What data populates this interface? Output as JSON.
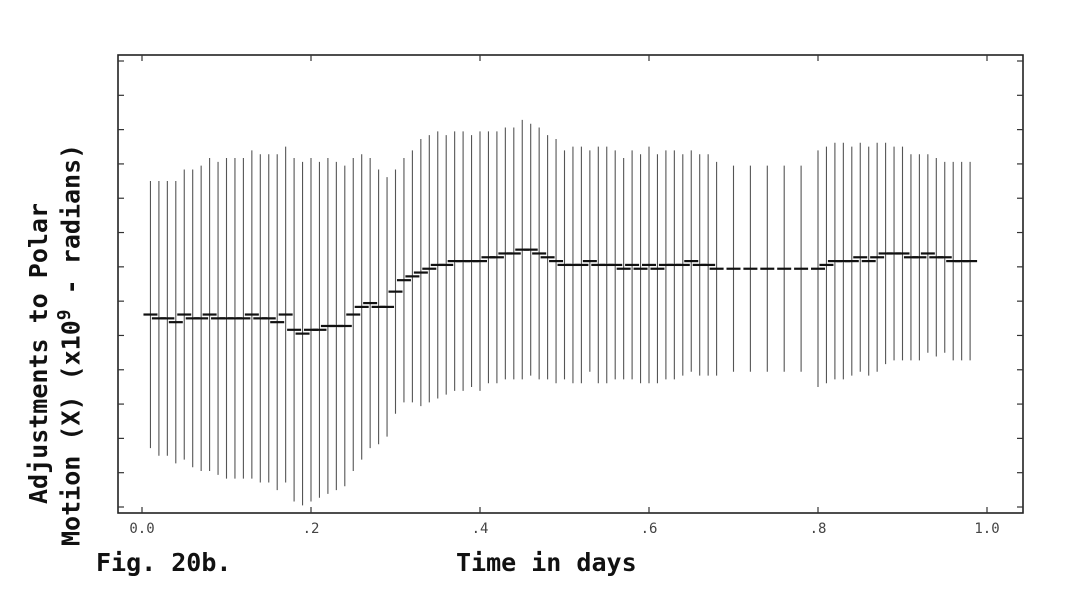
{
  "figure": {
    "caption": "Fig. 20b.",
    "y_label_line1": "Adjustments to Polar",
    "y_label_line2": "Motion (X) (x10",
    "y_label_exponent": "9",
    "y_label_suffix": "- radians)"
  },
  "chart_data": {
    "type": "scatter",
    "title": "",
    "xlabel": "Time in days",
    "ylabel": "Adjustments to Polar Motion (X) (x10^9 - radians)",
    "xlim": [
      0.0,
      1.0
    ],
    "ylim": [
      -0.6,
      0.6
    ],
    "x_ticks": [
      0.0,
      0.2,
      0.4,
      0.6,
      0.8,
      1.0
    ],
    "x_tick_labels": [
      "0.0",
      ".2",
      ".4",
      ".6",
      ".8",
      "1.0"
    ],
    "grid": false,
    "legend": "none",
    "series": [
      {
        "error_bars": true,
        "x": [
          0.01,
          0.02,
          0.03,
          0.04,
          0.05,
          0.06,
          0.07,
          0.08,
          0.09,
          0.1,
          0.11,
          0.12,
          0.13,
          0.14,
          0.15,
          0.16,
          0.17,
          0.18,
          0.19,
          0.2,
          0.21,
          0.22,
          0.23,
          0.24,
          0.25,
          0.26,
          0.27,
          0.28,
          0.29,
          0.3,
          0.31,
          0.32,
          0.33,
          0.34,
          0.35,
          0.36,
          0.37,
          0.38,
          0.39,
          0.4,
          0.41,
          0.42,
          0.43,
          0.44,
          0.45,
          0.46,
          0.47,
          0.48,
          0.49,
          0.5,
          0.51,
          0.52,
          0.53,
          0.54,
          0.55,
          0.56,
          0.57,
          0.58,
          0.59,
          0.6,
          0.61,
          0.62,
          0.63,
          0.64,
          0.65,
          0.66,
          0.67,
          0.68,
          0.7,
          0.72,
          0.74,
          0.76,
          0.78,
          0.8,
          0.81,
          0.82,
          0.83,
          0.84,
          0.85,
          0.86,
          0.87,
          0.88,
          0.89,
          0.9,
          0.91,
          0.92,
          0.93,
          0.94,
          0.95,
          0.96,
          0.97,
          0.98
        ],
        "y": [
          -0.08,
          -0.09,
          -0.09,
          -0.1,
          -0.08,
          -0.09,
          -0.09,
          -0.08,
          -0.09,
          -0.09,
          -0.09,
          -0.09,
          -0.08,
          -0.09,
          -0.09,
          -0.1,
          -0.08,
          -0.12,
          -0.13,
          -0.12,
          -0.12,
          -0.11,
          -0.11,
          -0.11,
          -0.08,
          -0.06,
          -0.05,
          -0.06,
          -0.06,
          -0.02,
          0.01,
          0.02,
          0.03,
          0.04,
          0.05,
          0.05,
          0.06,
          0.06,
          0.06,
          0.06,
          0.07,
          0.07,
          0.08,
          0.08,
          0.09,
          0.09,
          0.08,
          0.07,
          0.06,
          0.05,
          0.05,
          0.05,
          0.06,
          0.05,
          0.05,
          0.05,
          0.04,
          0.05,
          0.04,
          0.05,
          0.04,
          0.05,
          0.05,
          0.05,
          0.06,
          0.05,
          0.05,
          0.04,
          0.04,
          0.04,
          0.04,
          0.04,
          0.04,
          0.04,
          0.05,
          0.06,
          0.06,
          0.06,
          0.07,
          0.06,
          0.07,
          0.08,
          0.08,
          0.08,
          0.07,
          0.07,
          0.08,
          0.07,
          0.07,
          0.06,
          0.06,
          0.06
        ],
        "err": [
          0.35,
          0.36,
          0.36,
          0.37,
          0.38,
          0.39,
          0.4,
          0.41,
          0.41,
          0.42,
          0.42,
          0.42,
          0.43,
          0.43,
          0.43,
          0.44,
          0.44,
          0.45,
          0.45,
          0.45,
          0.44,
          0.44,
          0.43,
          0.42,
          0.41,
          0.4,
          0.38,
          0.36,
          0.34,
          0.32,
          0.32,
          0.33,
          0.35,
          0.35,
          0.35,
          0.34,
          0.34,
          0.34,
          0.33,
          0.34,
          0.33,
          0.33,
          0.33,
          0.33,
          0.34,
          0.33,
          0.33,
          0.32,
          0.32,
          0.3,
          0.31,
          0.31,
          0.29,
          0.31,
          0.31,
          0.3,
          0.29,
          0.3,
          0.3,
          0.31,
          0.3,
          0.3,
          0.3,
          0.29,
          0.29,
          0.29,
          0.29,
          0.28,
          0.27,
          0.27,
          0.27,
          0.27,
          0.27,
          0.31,
          0.31,
          0.31,
          0.31,
          0.3,
          0.3,
          0.3,
          0.3,
          0.29,
          0.28,
          0.28,
          0.27,
          0.27,
          0.26,
          0.26,
          0.25,
          0.26,
          0.26,
          0.26
        ]
      }
    ]
  }
}
